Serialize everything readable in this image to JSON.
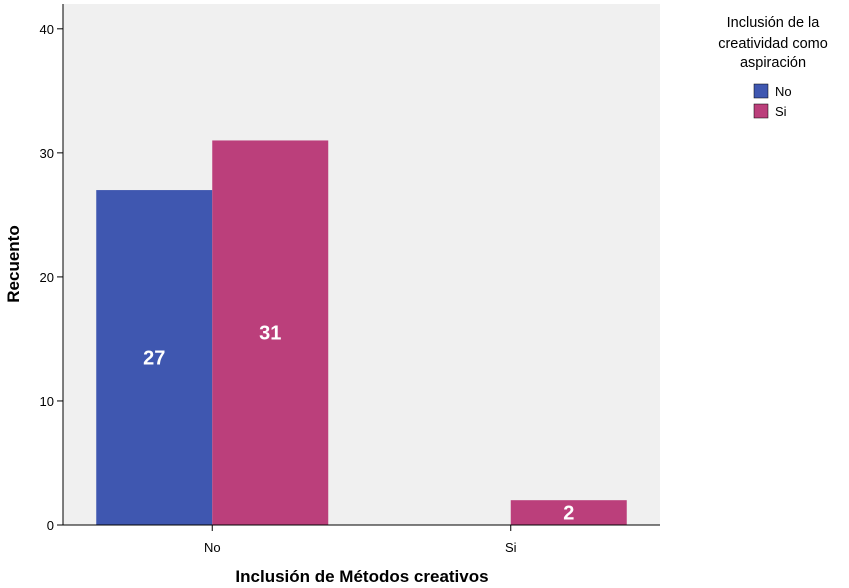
{
  "chart_data": {
    "type": "bar",
    "categories": [
      "No",
      "Si"
    ],
    "xlabel": "Inclusión de Métodos creativos",
    "ylabel": "Recuento",
    "ylim": [
      0,
      42
    ],
    "yticks": [
      0,
      10,
      20,
      30,
      40
    ],
    "grid": false,
    "legend": {
      "title_lines": [
        "Inclusión de la",
        "creatividad como",
        "aspiración"
      ],
      "placement": "top-right, outside plot"
    },
    "series": [
      {
        "name": "No",
        "color": "#3f57b0",
        "values": [
          27,
          0
        ]
      },
      {
        "name": "Si",
        "color": "#bb3f7b",
        "values": [
          31,
          2
        ]
      }
    ],
    "plot_background": "#f0f0f0"
  }
}
